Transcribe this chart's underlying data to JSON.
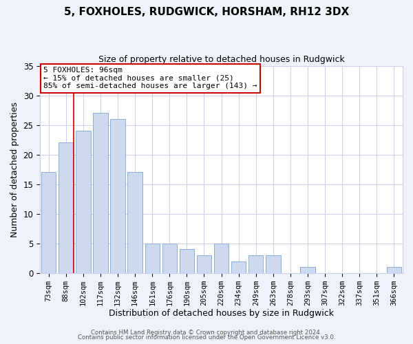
{
  "title": "5, FOXHOLES, RUDGWICK, HORSHAM, RH12 3DX",
  "subtitle": "Size of property relative to detached houses in Rudgwick",
  "xlabel": "Distribution of detached houses by size in Rudgwick",
  "ylabel": "Number of detached properties",
  "bar_color": "#ccd9ee",
  "bar_edge_color": "#8aaed4",
  "categories": [
    "73sqm",
    "88sqm",
    "102sqm",
    "117sqm",
    "132sqm",
    "146sqm",
    "161sqm",
    "176sqm",
    "190sqm",
    "205sqm",
    "220sqm",
    "234sqm",
    "249sqm",
    "263sqm",
    "278sqm",
    "293sqm",
    "307sqm",
    "322sqm",
    "337sqm",
    "351sqm",
    "366sqm"
  ],
  "values": [
    17,
    22,
    24,
    27,
    26,
    17,
    5,
    5,
    4,
    3,
    5,
    2,
    3,
    3,
    0,
    1,
    0,
    0,
    0,
    0,
    1
  ],
  "ylim": [
    0,
    35
  ],
  "yticks": [
    0,
    5,
    10,
    15,
    20,
    25,
    30,
    35
  ],
  "marker_label": "5 FOXHOLES: 96sqm",
  "annotation_line1": "← 15% of detached houses are smaller (25)",
  "annotation_line2": "85% of semi-detached houses are larger (143) →",
  "vline_color": "#cc0000",
  "annotation_box_edge": "#cc0000",
  "footer1": "Contains HM Land Registry data © Crown copyright and database right 2024.",
  "footer2": "Contains public sector information licensed under the Open Government Licence v3.0.",
  "background_color": "#eef2fa",
  "plot_bg_color": "#ffffff",
  "grid_color": "#c8d0e8"
}
